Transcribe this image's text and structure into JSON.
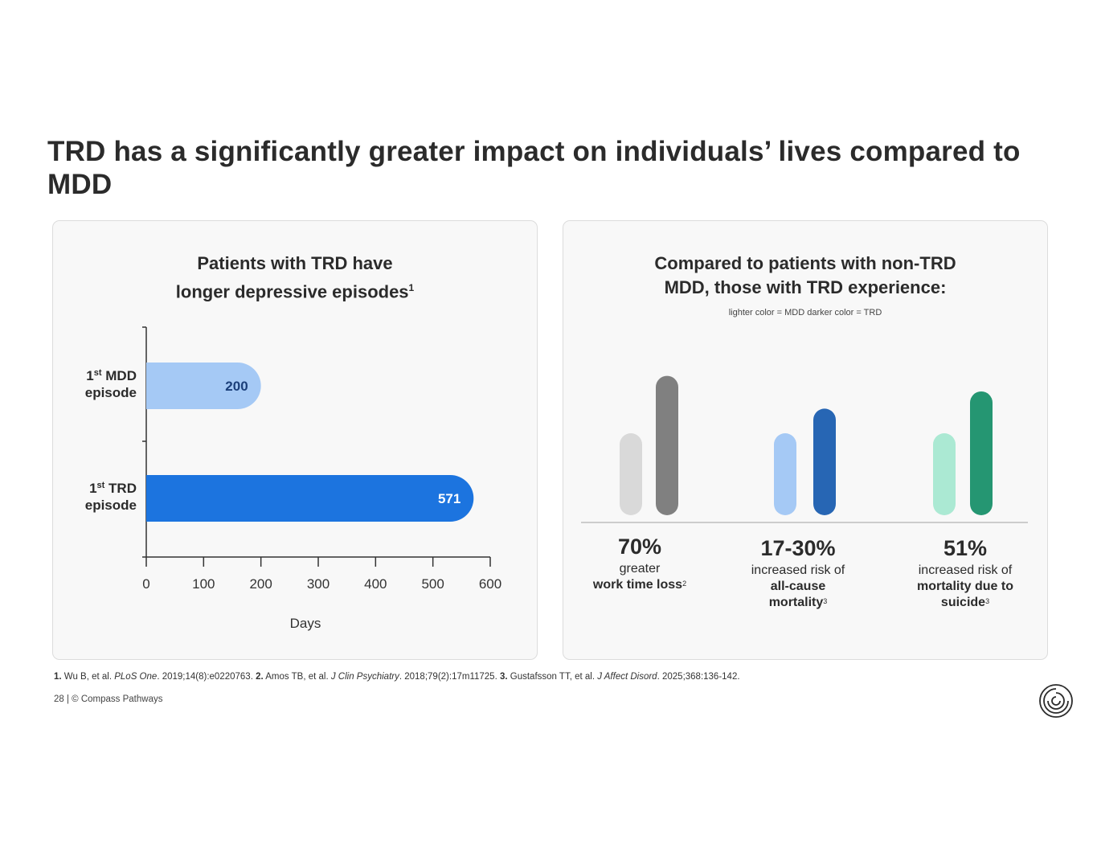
{
  "page": {
    "title": "TRD has a significantly greater impact on individuals’ lives compared to MDD"
  },
  "left_panel": {
    "title_line1": "Patients with TRD have",
    "title_line2": "longer depressive episodes",
    "title_sup": "1"
  },
  "right_panel": {
    "title_line1": "Compared to patients with non-TRD",
    "title_line2": "MDD, those with TRD experience:",
    "legend_note": "lighter color = MDD darker color = TRD",
    "stats": [
      {
        "value": "70%",
        "line1": "greater",
        "bold": "work time loss",
        "sup": "2"
      },
      {
        "value": "17-30%",
        "line1": "increased risk of",
        "bold": "all-cause mortality",
        "sup": "3"
      },
      {
        "value": "51%",
        "line1": "increased risk of",
        "bold": "mortality due to suicide",
        "sup": "3"
      }
    ]
  },
  "chart_data": [
    {
      "type": "bar",
      "orientation": "horizontal",
      "title": "Patients with TRD have longer depressive episodes",
      "categories": [
        {
          "num": "1",
          "sup": "st",
          "rest": "MDD",
          "line2": "episode"
        },
        {
          "num": "1",
          "sup": "st",
          "rest": "TRD",
          "line2": "episode"
        }
      ],
      "values": [
        200,
        571
      ],
      "value_labels": [
        "200",
        "571"
      ],
      "colors": [
        "#a5c9f5",
        "#1c74df"
      ],
      "label_colors": [
        "#1b3f7a",
        "#ffffff"
      ],
      "xlabel": "Days",
      "xlim": [
        0,
        600
      ],
      "xticks": [
        0,
        100,
        200,
        300,
        400,
        500,
        600
      ],
      "xtick_labels": [
        "0",
        "100",
        "200",
        "300",
        "400",
        "500",
        "600"
      ]
    },
    {
      "type": "bar",
      "orientation": "vertical",
      "title": "Compared to patients with non-TRD MDD, those with TRD experience:",
      "axis": "no value axis shown",
      "series": [
        {
          "name": "MDD",
          "values": [
            1.0,
            1.0,
            1.0
          ]
        },
        {
          "name": "TRD",
          "values": [
            1.7,
            1.3,
            1.51
          ]
        }
      ],
      "categories": [
        "70%",
        "17-30%",
        "51%"
      ],
      "colors_mdd": [
        "#d9d9d9",
        "#a5c9f5",
        "#abe9d3"
      ],
      "colors_trd": [
        "#808080",
        "#2766b4",
        "#259672"
      ]
    }
  ]
}
